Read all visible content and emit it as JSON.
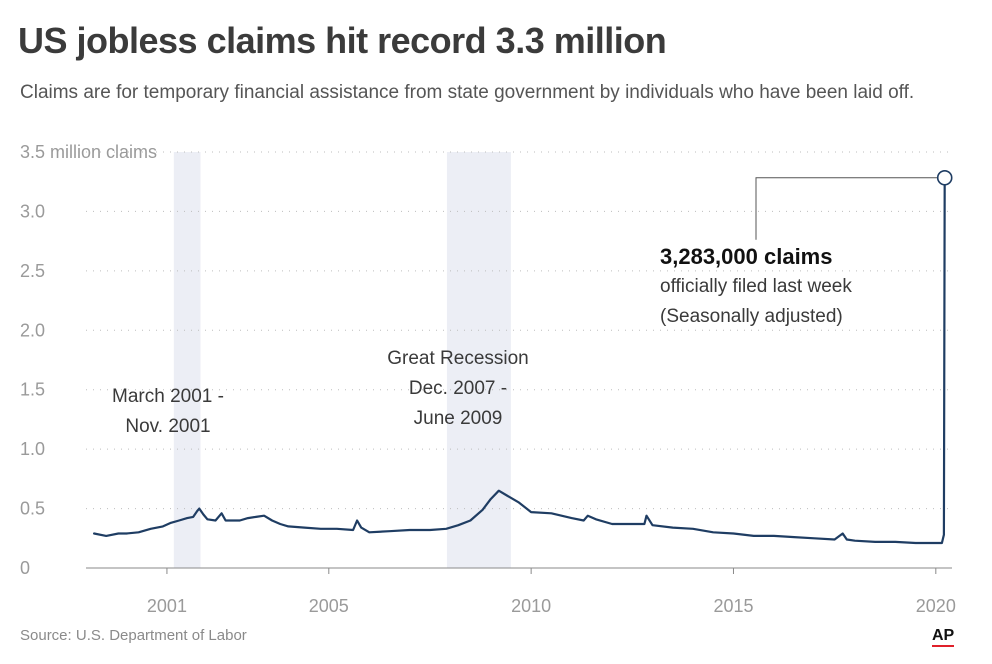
{
  "title": "US jobless claims hit record 3.3 million",
  "subtitle": "Claims are for temporary financial assistance from state government by individuals who have been laid off.",
  "source": "Source: U.S. Department of Labor",
  "logo": "AP",
  "colors": {
    "line": "#1f3d63",
    "recession_band": "#eceef5",
    "grid": "#bdbdbd",
    "axis_text": "#9a9a9a",
    "annotation_text": "#3a3a3a",
    "logo_underline": "#e0202a"
  },
  "chart_data": {
    "type": "line",
    "title": "US jobless claims hit record 3.3 million",
    "ylabel": "3.5 million claims",
    "ylim": [
      0,
      3.5
    ],
    "y_unit": "million claims",
    "y_ticks": [
      {
        "value": 0,
        "label": "0"
      },
      {
        "value": 0.5,
        "label": "0.5"
      },
      {
        "value": 1.0,
        "label": "1.0"
      },
      {
        "value": 1.5,
        "label": "1.5"
      },
      {
        "value": 2.0,
        "label": "2.0"
      },
      {
        "value": 2.5,
        "label": "2.5"
      },
      {
        "value": 3.0,
        "label": "3.0"
      },
      {
        "value": 3.5,
        "label": "3.5 million claims"
      }
    ],
    "x_ticks": [
      {
        "value": 2001,
        "label": "2001"
      },
      {
        "value": 2005,
        "label": "2005"
      },
      {
        "value": 2010,
        "label": "2010"
      },
      {
        "value": 2015,
        "label": "2015"
      },
      {
        "value": 2020,
        "label": "2020"
      }
    ],
    "xlim": [
      1999.0,
      2020.4
    ],
    "grid": true,
    "recessions": [
      {
        "start": 2001.17,
        "end": 2001.83,
        "label": [
          "March 2001 -",
          "Nov. 2001"
        ]
      },
      {
        "start": 2007.92,
        "end": 2009.5,
        "label": [
          "Great Recession",
          "Dec. 2007 -",
          "June 2009"
        ]
      }
    ],
    "series": [
      {
        "points": [
          [
            1999.2,
            0.29
          ],
          [
            1999.5,
            0.27
          ],
          [
            1999.8,
            0.29
          ],
          [
            2000.0,
            0.29
          ],
          [
            2000.3,
            0.3
          ],
          [
            2000.6,
            0.33
          ],
          [
            2000.9,
            0.35
          ],
          [
            2001.1,
            0.38
          ],
          [
            2001.3,
            0.4
          ],
          [
            2001.5,
            0.42
          ],
          [
            2001.65,
            0.43
          ],
          [
            2001.75,
            0.48
          ],
          [
            2001.8,
            0.5
          ],
          [
            2001.9,
            0.45
          ],
          [
            2002.0,
            0.41
          ],
          [
            2002.2,
            0.4
          ],
          [
            2002.35,
            0.46
          ],
          [
            2002.45,
            0.4
          ],
          [
            2002.8,
            0.4
          ],
          [
            2003.0,
            0.42
          ],
          [
            2003.2,
            0.43
          ],
          [
            2003.4,
            0.44
          ],
          [
            2003.6,
            0.4
          ],
          [
            2003.8,
            0.37
          ],
          [
            2004.0,
            0.35
          ],
          [
            2004.4,
            0.34
          ],
          [
            2004.8,
            0.33
          ],
          [
            2005.2,
            0.33
          ],
          [
            2005.6,
            0.32
          ],
          [
            2005.7,
            0.4
          ],
          [
            2005.8,
            0.34
          ],
          [
            2006.0,
            0.3
          ],
          [
            2006.5,
            0.31
          ],
          [
            2007.0,
            0.32
          ],
          [
            2007.5,
            0.32
          ],
          [
            2007.9,
            0.33
          ],
          [
            2008.2,
            0.36
          ],
          [
            2008.5,
            0.4
          ],
          [
            2008.8,
            0.49
          ],
          [
            2009.0,
            0.58
          ],
          [
            2009.2,
            0.65
          ],
          [
            2009.4,
            0.61
          ],
          [
            2009.7,
            0.55
          ],
          [
            2010.0,
            0.47
          ],
          [
            2010.5,
            0.46
          ],
          [
            2011.0,
            0.42
          ],
          [
            2011.3,
            0.4
          ],
          [
            2011.4,
            0.44
          ],
          [
            2011.6,
            0.41
          ],
          [
            2012.0,
            0.37
          ],
          [
            2012.5,
            0.37
          ],
          [
            2012.8,
            0.37
          ],
          [
            2012.85,
            0.44
          ],
          [
            2013.0,
            0.36
          ],
          [
            2013.5,
            0.34
          ],
          [
            2014.0,
            0.33
          ],
          [
            2014.5,
            0.3
          ],
          [
            2015.0,
            0.29
          ],
          [
            2015.5,
            0.27
          ],
          [
            2016.0,
            0.27
          ],
          [
            2016.5,
            0.26
          ],
          [
            2017.0,
            0.25
          ],
          [
            2017.5,
            0.24
          ],
          [
            2017.7,
            0.29
          ],
          [
            2017.8,
            0.24
          ],
          [
            2018.0,
            0.23
          ],
          [
            2018.5,
            0.22
          ],
          [
            2019.0,
            0.22
          ],
          [
            2019.5,
            0.21
          ],
          [
            2019.9,
            0.21
          ],
          [
            2020.15,
            0.21
          ],
          [
            2020.2,
            0.28
          ],
          [
            2020.22,
            3.283
          ]
        ]
      }
    ],
    "annotations": [
      {
        "value": "3,283,000 claims",
        "lines": [
          "officially filed last week",
          "(Seasonally adjusted)"
        ],
        "x": 2020.22,
        "y": 3.283
      }
    ]
  }
}
